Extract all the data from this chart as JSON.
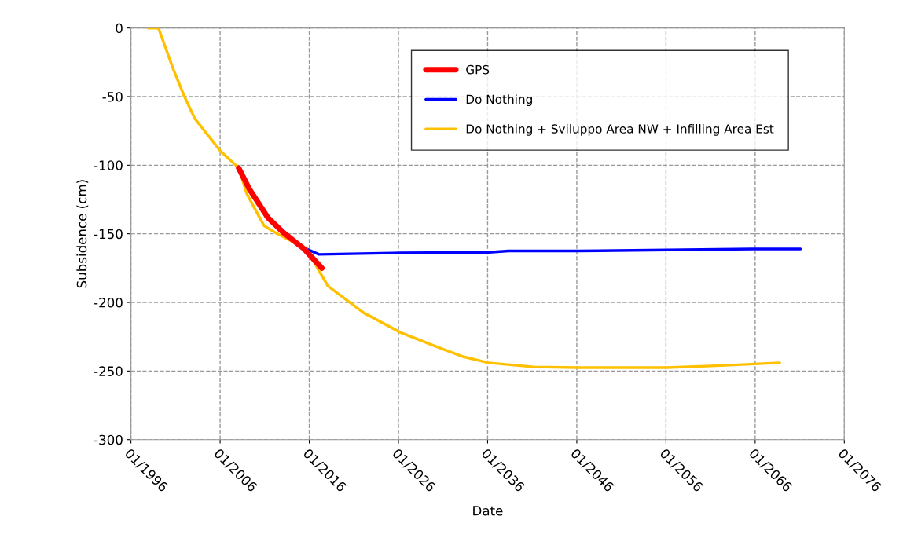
{
  "chart_data": {
    "type": "line",
    "xlabel": "Date",
    "ylabel": "Subsidence (cm)",
    "series": [
      {
        "name": "GPS",
        "color": "#ff0000",
        "x": [
          "2008-02",
          "2009-04",
          "2011-05",
          "2013-02",
          "2015-06",
          "2017-06"
        ],
        "values": [
          -102,
          -117,
          -138,
          -149,
          -161,
          -175
        ]
      },
      {
        "name": "Do Nothing",
        "color": "#0000ff",
        "x": [
          "2015-09",
          "2017-02",
          "2025-05",
          "2036-03",
          "2038-05",
          "2046-03",
          "2065-09",
          "2071-02"
        ],
        "values": [
          -161,
          -165,
          -164,
          -163.5,
          -162.5,
          -162.5,
          -161,
          -161
        ]
      },
      {
        "name": "Do Nothing + Sviluppo Area NW + Infilling Area Est",
        "color": "#ffc000",
        "x": [
          "1997-12",
          "1999-02",
          "2000-10",
          "2002-01",
          "2003-03",
          "2006-02",
          "2008-02",
          "2009-01",
          "2010-12",
          "2012-03",
          "2015-09",
          "2018-02",
          "2022-02",
          "2026-04",
          "2030-03",
          "2033-04",
          "2036-02",
          "2041-03",
          "2046-01",
          "2056-02",
          "2062-03",
          "2068-10"
        ],
        "values": [
          0,
          0,
          -30,
          -50,
          -66,
          -90,
          -102,
          -121,
          -144,
          -149,
          -161,
          -188,
          -207.5,
          -222,
          -232,
          -239.5,
          -244,
          -247,
          -247.5,
          -247.5,
          -246,
          -244
        ]
      }
    ],
    "xlim": [
      "1996-01",
      "2076-01"
    ],
    "xticks": [
      {
        "value": "1996-01",
        "label": "01/1996"
      },
      {
        "value": "2006-01",
        "label": "01/2006"
      },
      {
        "value": "2016-01",
        "label": "01/2016"
      },
      {
        "value": "2026-01",
        "label": "01/2026"
      },
      {
        "value": "2036-01",
        "label": "01/2036"
      },
      {
        "value": "2046-01",
        "label": "01/2046"
      },
      {
        "value": "2056-01",
        "label": "01/2056"
      },
      {
        "value": "2066-01",
        "label": "01/2066"
      },
      {
        "value": "2076-01",
        "label": "01/2076"
      }
    ],
    "ylim": [
      -300,
      0
    ],
    "yticks": [
      -300,
      -250,
      -200,
      -150,
      -100,
      -50,
      0
    ],
    "grid": true,
    "legend": "top right",
    "line_style": "solid",
    "marker": "none"
  }
}
